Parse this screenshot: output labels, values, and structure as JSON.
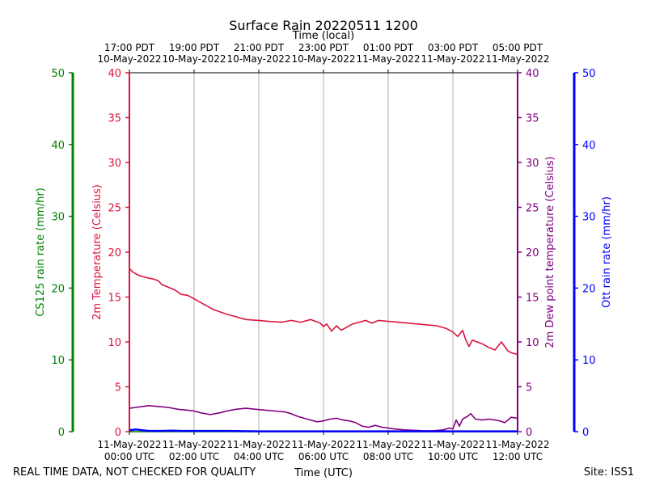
{
  "chart_data": {
    "type": "line",
    "title": "Surface Rain 20220511 1200",
    "top_axis_label": "Time (local)",
    "bottom_axis_label": "Time (UTC)",
    "footer_left": "REAL TIME DATA, NOT CHECKED FOR QUALITY",
    "footer_right": "Site: ISS1",
    "x_range_hours_utc": [
      0,
      12
    ],
    "x_ticks_utc": [
      {
        "hour": 0,
        "line1": "11-May-2022",
        "line2": "00:00 UTC"
      },
      {
        "hour": 2,
        "line1": "11-May-2022",
        "line2": "02:00 UTC"
      },
      {
        "hour": 4,
        "line1": "11-May-2022",
        "line2": "04:00 UTC"
      },
      {
        "hour": 6,
        "line1": "11-May-2022",
        "line2": "06:00 UTC"
      },
      {
        "hour": 8,
        "line1": "11-May-2022",
        "line2": "08:00 UTC"
      },
      {
        "hour": 10,
        "line1": "11-May-2022",
        "line2": "10:00 UTC"
      },
      {
        "hour": 12,
        "line1": "11-May-2022",
        "line2": "12:00 UTC"
      }
    ],
    "x_ticks_local": [
      {
        "hour": 0,
        "line1": "17:00 PDT",
        "line2": "10-May-2022"
      },
      {
        "hour": 2,
        "line1": "19:00 PDT",
        "line2": "10-May-2022"
      },
      {
        "hour": 4,
        "line1": "21:00 PDT",
        "line2": "10-May-2022"
      },
      {
        "hour": 6,
        "line1": "23:00 PDT",
        "line2": "10-May-2022"
      },
      {
        "hour": 8,
        "line1": "01:00 PDT",
        "line2": "11-May-2022"
      },
      {
        "hour": 10,
        "line1": "03:00 PDT",
        "line2": "11-May-2022"
      },
      {
        "hour": 12,
        "line1": "05:00 PDT",
        "line2": "11-May-2022"
      }
    ],
    "axes": {
      "cs125": {
        "label": "CS125 rain rate (mm/hr)",
        "ylim": [
          0,
          50
        ],
        "ticks": [
          0,
          10,
          20,
          30,
          40,
          50
        ],
        "color": "#008000"
      },
      "temp": {
        "label": "2m Temperature (Celsius)",
        "ylim": [
          0,
          40
        ],
        "ticks": [
          0,
          5,
          10,
          15,
          20,
          25,
          30,
          35,
          40
        ],
        "color": "#dc143c"
      },
      "dew": {
        "label": "2m Dew point temperature (Celsius)",
        "ylim": [
          0,
          40
        ],
        "ticks": [
          0,
          5,
          10,
          15,
          20,
          25,
          30,
          35,
          40
        ],
        "color": "#800080"
      },
      "ott": {
        "label": "Ott rain rate (mm/hr)",
        "ylim": [
          0,
          50
        ],
        "ticks": [
          0,
          10,
          20,
          30,
          40,
          50
        ],
        "color": "#0000ff"
      }
    },
    "series": [
      {
        "name": "2m Temperature",
        "axis": "temp",
        "color": "#dc143c",
        "x": [
          0,
          0.1,
          0.3,
          0.5,
          0.75,
          0.9,
          1.0,
          1.2,
          1.4,
          1.6,
          1.8,
          2.0,
          2.3,
          2.6,
          3.0,
          3.3,
          3.6,
          4.0,
          4.3,
          4.7,
          5.0,
          5.3,
          5.6,
          5.9,
          6.0,
          6.1,
          6.25,
          6.4,
          6.55,
          6.7,
          6.9,
          7.1,
          7.3,
          7.5,
          7.7,
          8.0,
          8.3,
          8.6,
          8.9,
          9.2,
          9.5,
          9.8,
          10.0,
          10.15,
          10.3,
          10.4,
          10.5,
          10.6,
          10.75,
          10.9,
          11.1,
          11.3,
          11.5,
          11.6,
          11.7,
          11.8,
          12.0
        ],
        "y": [
          18.2,
          17.8,
          17.4,
          17.2,
          17.0,
          16.8,
          16.4,
          16.1,
          15.8,
          15.3,
          15.2,
          14.8,
          14.2,
          13.6,
          13.1,
          12.8,
          12.5,
          12.4,
          12.3,
          12.2,
          12.4,
          12.2,
          12.5,
          12.1,
          11.7,
          12.0,
          11.2,
          11.8,
          11.3,
          11.6,
          12.0,
          12.2,
          12.4,
          12.1,
          12.4,
          12.3,
          12.2,
          12.1,
          12.0,
          11.9,
          11.8,
          11.5,
          11.1,
          10.6,
          11.3,
          10.2,
          9.5,
          10.2,
          10.0,
          9.8,
          9.4,
          9.1,
          10.0,
          9.5,
          9.0,
          8.8,
          8.6
        ]
      },
      {
        "name": "2m Dew point temperature",
        "axis": "dew",
        "color": "#800080",
        "x": [
          0,
          0.2,
          0.4,
          0.6,
          0.9,
          1.2,
          1.5,
          1.8,
          2.0,
          2.2,
          2.5,
          2.8,
          3.0,
          3.3,
          3.6,
          3.9,
          4.2,
          4.5,
          4.8,
          5.0,
          5.2,
          5.4,
          5.6,
          5.8,
          6.0,
          6.2,
          6.4,
          6.6,
          6.8,
          7.0,
          7.2,
          7.4,
          7.6,
          7.8,
          8.0,
          8.2,
          8.5,
          8.8,
          9.1,
          9.4,
          9.7,
          9.9,
          10.0,
          10.1,
          10.2,
          10.3,
          10.45,
          10.55,
          10.7,
          10.9,
          11.1,
          11.3,
          11.45,
          11.6,
          11.8,
          12.0
        ],
        "y": [
          2.6,
          2.7,
          2.8,
          2.9,
          2.8,
          2.7,
          2.5,
          2.4,
          2.3,
          2.1,
          1.9,
          2.1,
          2.3,
          2.5,
          2.6,
          2.5,
          2.4,
          2.3,
          2.2,
          2.0,
          1.7,
          1.5,
          1.3,
          1.1,
          1.2,
          1.4,
          1.5,
          1.3,
          1.2,
          1.0,
          0.6,
          0.5,
          0.7,
          0.5,
          0.4,
          0.3,
          0.2,
          0.15,
          0.1,
          0.1,
          0.2,
          0.4,
          0.3,
          1.3,
          0.6,
          1.4,
          1.7,
          2.0,
          1.4,
          1.3,
          1.4,
          1.3,
          1.2,
          1.0,
          1.6,
          1.5
        ]
      },
      {
        "name": "CS125 rain rate",
        "axis": "cs125",
        "color": "#008000",
        "x": [
          0,
          12
        ],
        "y": [
          0,
          0
        ]
      },
      {
        "name": "Ott rain rate",
        "axis": "ott",
        "color": "#0000ff",
        "x": [
          0,
          0.2,
          0.4,
          0.6,
          1.0,
          1.3,
          1.6,
          2.0,
          3.0,
          4.0,
          5.0,
          6.0,
          7.0,
          8.0,
          9.0,
          10.0,
          11.0,
          12.0
        ],
        "y": [
          0.2,
          0.3,
          0.2,
          0.1,
          0.1,
          0.15,
          0.1,
          0.1,
          0.1,
          0.05,
          0.05,
          0.05,
          0.05,
          0.05,
          0.05,
          0.05,
          0.05,
          0.05
        ]
      }
    ]
  }
}
